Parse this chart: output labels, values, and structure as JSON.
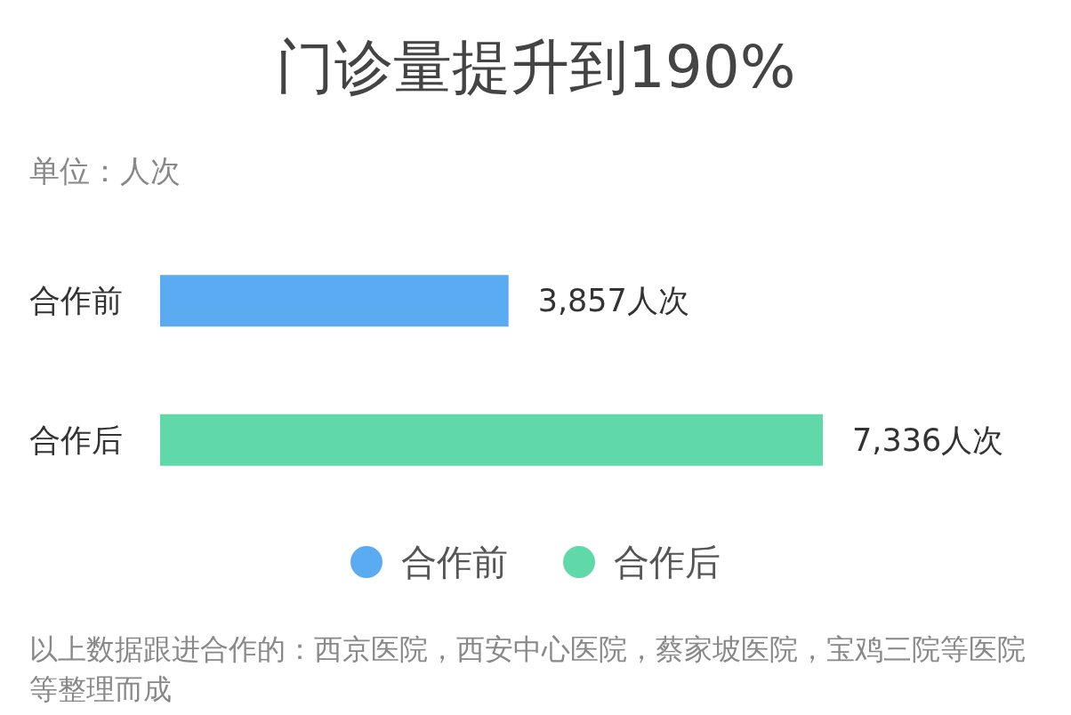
{
  "chart_data": {
    "type": "bar",
    "orientation": "horizontal",
    "stacked": true,
    "title": "门诊量提升到190%",
    "subtitle": "单位：人次",
    "categories": [
      "合作前",
      "合作后"
    ],
    "series": [
      {
        "name": "合作前",
        "color": "#5aabf2",
        "values": [
          3857,
          null
        ],
        "value_labels": [
          "3,857人次",
          null
        ]
      },
      {
        "name": "合作后",
        "color": "#60d8a9",
        "values": [
          null,
          7336
        ],
        "value_labels": [
          null,
          "7,336人次"
        ]
      }
    ],
    "legend": "bottom",
    "annotations": [
      "以上数据跟进合作的：西京医院，西安中心医院，蔡家坡医院，宝鸡三院等医院等整理而成"
    ]
  }
}
